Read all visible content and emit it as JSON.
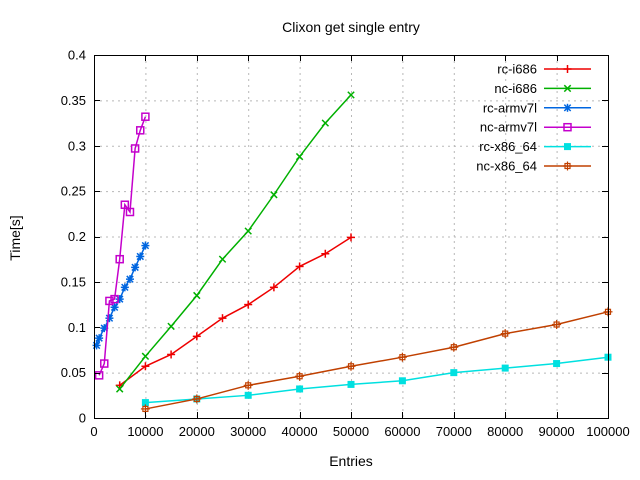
{
  "window": {
    "background": "#ffffff"
  },
  "chart_data": {
    "type": "line",
    "title": "Clixon get single entry",
    "xlabel": "Entries",
    "ylabel": "Time[s]",
    "xlim": [
      0,
      100000
    ],
    "ylim": [
      0,
      0.4
    ],
    "grid": true,
    "legend_position": "top-right-inside",
    "axis_color": "#000000",
    "grid_color": "#b8b8b8",
    "x_ticks": {
      "values": [
        0,
        10000,
        20000,
        30000,
        40000,
        50000,
        60000,
        70000,
        80000,
        90000,
        100000
      ],
      "labels": [
        "0",
        "10000",
        "20000",
        "30000",
        "40000",
        "50000",
        "60000",
        "70000",
        "80000",
        "90000",
        "100000"
      ]
    },
    "y_ticks": {
      "values": [
        0,
        0.05,
        0.1,
        0.15,
        0.2,
        0.25,
        0.3,
        0.35,
        0.4
      ],
      "labels": [
        "0",
        "0.05",
        "0.1",
        "0.15",
        "0.2",
        "0.25",
        "0.3",
        "0.35",
        "0.4"
      ]
    },
    "series": [
      {
        "name": "rc-i686",
        "color": "#ee0000",
        "marker": "plus",
        "x": [
          5000,
          10000,
          15000,
          20000,
          25000,
          30000,
          35000,
          40000,
          45000,
          50000
        ],
        "y": [
          0.036,
          0.057,
          0.07,
          0.09,
          0.11,
          0.125,
          0.144,
          0.167,
          0.181,
          0.199
        ]
      },
      {
        "name": "nc-i686",
        "color": "#00b000",
        "marker": "cross",
        "x": [
          5000,
          10000,
          15000,
          20000,
          25000,
          30000,
          35000,
          40000,
          45000,
          50000
        ],
        "y": [
          0.032,
          0.068,
          0.101,
          0.135,
          0.175,
          0.206,
          0.246,
          0.288,
          0.325,
          0.356
        ]
      },
      {
        "name": "rc-armv7l",
        "color": "#0066e0",
        "marker": "asterisk",
        "x": [
          500,
          1000,
          2000,
          3000,
          4000,
          5000,
          6000,
          7000,
          8000,
          9000,
          10000
        ],
        "y": [
          0.08,
          0.088,
          0.099,
          0.11,
          0.122,
          0.131,
          0.144,
          0.153,
          0.166,
          0.178,
          0.19
        ]
      },
      {
        "name": "nc-armv7l",
        "color": "#c400cc",
        "marker": "square-open",
        "x": [
          1000,
          2000,
          3000,
          4000,
          5000,
          6000,
          7000,
          8000,
          9000,
          10000
        ],
        "y": [
          0.047,
          0.06,
          0.129,
          0.131,
          0.175,
          0.235,
          0.227,
          0.297,
          0.317,
          0.332
        ]
      },
      {
        "name": "rc-x86_64",
        "color": "#00e0e0",
        "marker": "square-filled",
        "x": [
          10000,
          20000,
          30000,
          40000,
          50000,
          60000,
          70000,
          80000,
          90000,
          100000
        ],
        "y": [
          0.017,
          0.021,
          0.025,
          0.032,
          0.037,
          0.041,
          0.05,
          0.055,
          0.06,
          0.067
        ]
      },
      {
        "name": "nc-x86_64",
        "color": "#c04000",
        "marker": "square-plus",
        "x": [
          10000,
          20000,
          30000,
          40000,
          50000,
          60000,
          70000,
          80000,
          90000,
          100000
        ],
        "y": [
          0.01,
          0.021,
          0.036,
          0.046,
          0.057,
          0.067,
          0.078,
          0.093,
          0.103,
          0.117
        ]
      }
    ]
  }
}
